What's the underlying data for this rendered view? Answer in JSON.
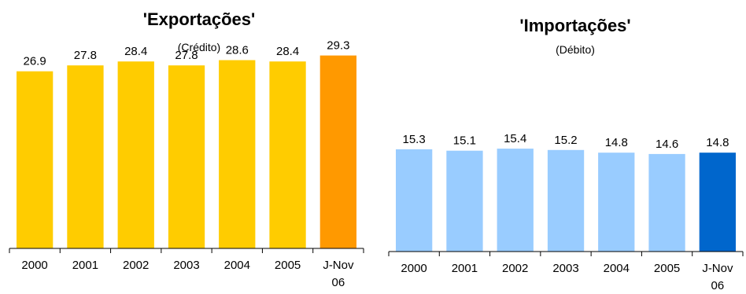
{
  "chart_data": [
    {
      "type": "bar",
      "title": "'Exportações'",
      "subtitle": "(Crédito)",
      "categories": [
        "2000",
        "2001",
        "2002",
        "2003",
        "2004",
        "2005",
        "J-Nov 06"
      ],
      "values": [
        26.9,
        27.8,
        28.4,
        27.8,
        28.6,
        28.4,
        29.3
      ],
      "value_labels": [
        "26.9",
        "27.8",
        "28.4",
        "27.8",
        "28.6",
        "28.4",
        "29.3"
      ],
      "ylim": [
        0,
        32
      ],
      "grid": false,
      "colors": {
        "bar": "#FFCC00",
        "highlight": "#FF9900"
      },
      "highlight_index": 6
    },
    {
      "type": "bar",
      "title": "'Importações'",
      "subtitle": "(Débito)",
      "categories": [
        "2000",
        "2001",
        "2002",
        "2003",
        "2004",
        "2005",
        "J-Nov 06"
      ],
      "values": [
        15.3,
        15.1,
        15.4,
        15.2,
        14.8,
        14.6,
        14.8
      ],
      "value_labels": [
        "15.3",
        "15.1",
        "15.4",
        "15.2",
        "14.8",
        "14.6",
        "14.8"
      ],
      "ylim": [
        0,
        32
      ],
      "grid": false,
      "colors": {
        "bar": "#99CCFF",
        "highlight": "#0066CC"
      },
      "highlight_index": 6
    }
  ]
}
